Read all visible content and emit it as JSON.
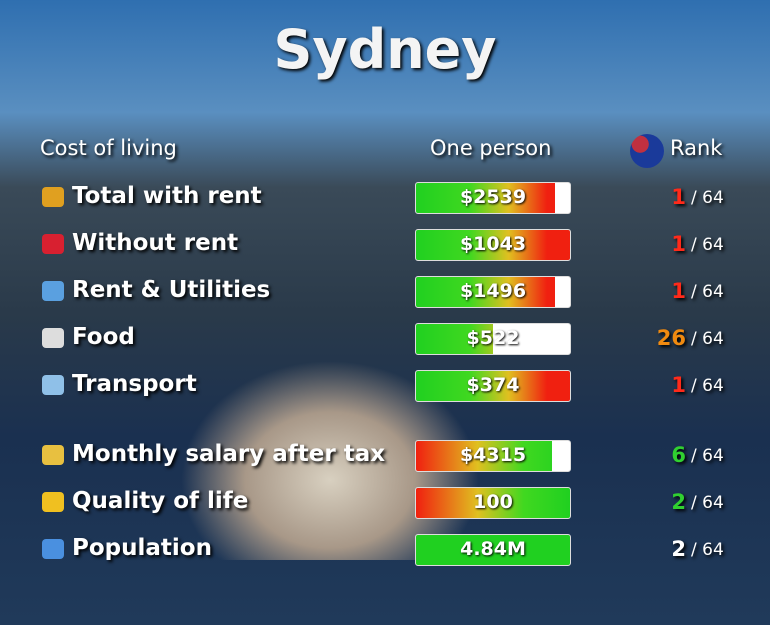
{
  "header": {
    "title": "Sydney",
    "col_label": "Cost of living",
    "col_value": "One person",
    "col_rank": "Rank"
  },
  "rank_total": "/ 64",
  "rows": [
    {
      "label": "Total with rent",
      "value": "$2539",
      "rank": 1,
      "fill": 0.9,
      "bar_style": "cost",
      "rank_color": "#ff2a1a",
      "icon_color": "#e0a020"
    },
    {
      "label": "Without rent",
      "value": "$1043",
      "rank": 1,
      "fill": 1,
      "bar_style": "cost",
      "rank_color": "#ff2a1a",
      "icon_color": "#d82030"
    },
    {
      "label": "Rent & Utilities",
      "value": "$1496",
      "rank": 1,
      "fill": 0.9,
      "bar_style": "cost",
      "rank_color": "#ff2a1a",
      "icon_color": "#5aa0e0"
    },
    {
      "label": "Food",
      "value": "$522",
      "rank": 26,
      "fill": 0.5,
      "bar_style": "cost",
      "rank_color": "#f08a10",
      "icon_color": "#dddddd"
    },
    {
      "label": "Transport",
      "value": "$374",
      "rank": 1,
      "fill": 1,
      "bar_style": "cost",
      "rank_color": "#ff2a1a",
      "icon_color": "#8fc0e8"
    },
    {
      "label": "Monthly salary after tax",
      "value": "$4315",
      "rank": 6,
      "fill": 0.88,
      "bar_style": "benefit",
      "rank_color": "#30d030",
      "icon_color": "#e8c040"
    },
    {
      "label": "Quality of life",
      "value": "100",
      "rank": 2,
      "fill": 1,
      "bar_style": "benefit",
      "rank_color": "#30d030",
      "icon_color": "#f0c020"
    },
    {
      "label": "Population",
      "value": "4.84M",
      "rank": 2,
      "fill": 1,
      "bar_style": "plain",
      "rank_color": "#ffffff",
      "icon_color": "#4a90e0"
    }
  ]
}
